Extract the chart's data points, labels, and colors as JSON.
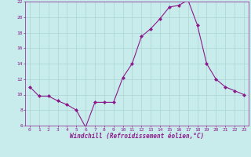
{
  "x": [
    0,
    1,
    2,
    3,
    4,
    5,
    6,
    7,
    8,
    9,
    10,
    11,
    12,
    13,
    14,
    15,
    16,
    17,
    18,
    19,
    20,
    21,
    22,
    23
  ],
  "y": [
    11,
    9.8,
    9.8,
    9.2,
    8.7,
    8.0,
    5.8,
    9.0,
    9.0,
    9.0,
    12.2,
    14.0,
    17.5,
    18.5,
    19.8,
    21.3,
    21.5,
    22.2,
    19.0,
    14.0,
    12.0,
    11.0,
    10.5,
    10.0
  ],
  "line_color": "#8b1a8b",
  "marker": "D",
  "marker_size": 2.0,
  "bg_color": "#c8ecec",
  "grid_color": "#b0d8d8",
  "xlabel": "Windchill (Refroidissement éolien,°C)",
  "xlabel_color": "#8b1a8b",
  "tick_color": "#8b1a8b",
  "ylim": [
    6,
    22
  ],
  "xlim": [
    -0.5,
    23.5
  ],
  "yticks": [
    6,
    8,
    10,
    12,
    14,
    16,
    18,
    20,
    22
  ],
  "xticks": [
    0,
    1,
    2,
    3,
    4,
    5,
    6,
    7,
    8,
    9,
    10,
    11,
    12,
    13,
    14,
    15,
    16,
    17,
    18,
    19,
    20,
    21,
    22,
    23
  ],
  "figsize": [
    3.2,
    2.0
  ],
  "dpi": 100
}
